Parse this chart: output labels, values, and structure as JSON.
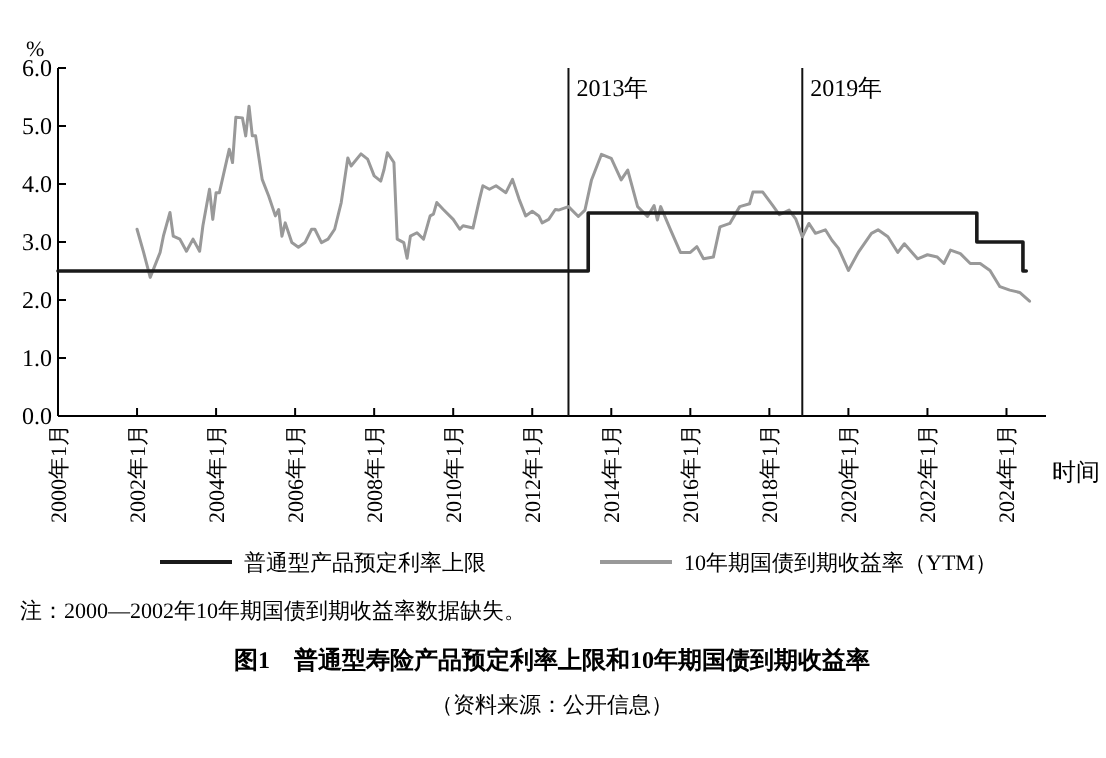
{
  "chart_data": {
    "type": "line",
    "title": "图1　普通型寿险产品预定利率上限和10年期国债到期收益率",
    "xlabel": "时间",
    "ylabel": "%",
    "annotations": [
      "注：2000—2002年10年期国债到期收益率数据缺失。",
      "（资料来源：公开信息）"
    ],
    "xlim": [
      "2000-01",
      "2025-01"
    ],
    "xticks": [
      {
        "value": "2000-01",
        "label": "2000年1月"
      },
      {
        "value": "2002-01",
        "label": "2002年1月"
      },
      {
        "value": "2004-01",
        "label": "2004年1月"
      },
      {
        "value": "2006-01",
        "label": "2006年1月"
      },
      {
        "value": "2008-01",
        "label": "2008年1月"
      },
      {
        "value": "2010-01",
        "label": "2010年1月"
      },
      {
        "value": "2012-01",
        "label": "2012年1月"
      },
      {
        "value": "2014-01",
        "label": "2014年1月"
      },
      {
        "value": "2016-01",
        "label": "2016年1月"
      },
      {
        "value": "2018-01",
        "label": "2018年1月"
      },
      {
        "value": "2020-01",
        "label": "2020年1月"
      },
      {
        "value": "2022-01",
        "label": "2022年1月"
      },
      {
        "value": "2024-01",
        "label": "2024年1月"
      }
    ],
    "ylim": [
      0,
      6
    ],
    "yticks": [
      {
        "value": 0,
        "label": "0.0"
      },
      {
        "value": 1,
        "label": "1.0"
      },
      {
        "value": 2,
        "label": "2.0"
      },
      {
        "value": 3,
        "label": "3.0"
      },
      {
        "value": 4,
        "label": "4.0"
      },
      {
        "value": 5,
        "label": "5.0"
      },
      {
        "value": 6,
        "label": "6.0"
      }
    ],
    "grid": false,
    "legend": "bottom",
    "ref_lines": [
      {
        "axis": "x",
        "value": "2012-12",
        "label": "2013年",
        "color": "#111111"
      },
      {
        "axis": "x",
        "value": "2018-11",
        "label": "2019年",
        "color": "#111111"
      }
    ],
    "series": [
      {
        "name": "普通型产品预定利率上限",
        "type": "step",
        "color": "#1a1a1a",
        "x": [
          "2000-01",
          "2013-06",
          "2023-04",
          "2024-06",
          "2024-07"
        ],
        "values": [
          2.5,
          3.5,
          3.0,
          2.5,
          2.5
        ]
      },
      {
        "name": "10年期国债到期收益率（YTM）",
        "type": "line",
        "color": "#999999",
        "x": [
          "2002-01",
          "2002-03",
          "2002-05",
          "2002-08",
          "2002-09",
          "2002-11",
          "2002-12",
          "2003-02",
          "2003-04",
          "2003-06",
          "2003-08",
          "2003-09",
          "2003-11",
          "2003-12",
          "2004-01",
          "2004-02",
          "2004-05",
          "2004-06",
          "2004-07",
          "2004-09",
          "2004-10",
          "2004-11",
          "2004-12",
          "2005-01",
          "2005-03",
          "2005-05",
          "2005-07",
          "2005-08",
          "2005-09",
          "2005-10",
          "2005-12",
          "2006-02",
          "2006-04",
          "2006-06",
          "2006-07",
          "2006-09",
          "2006-11",
          "2007-01",
          "2007-03",
          "2007-05",
          "2007-06",
          "2007-09",
          "2007-11",
          "2008-01",
          "2008-03",
          "2008-04",
          "2008-05",
          "2008-07",
          "2008-08",
          "2008-10",
          "2008-11",
          "2008-12",
          "2009-02",
          "2009-04",
          "2009-06",
          "2009-07",
          "2009-08",
          "2009-10",
          "2010-01",
          "2010-03",
          "2010-04",
          "2010-07",
          "2010-09",
          "2010-10",
          "2010-12",
          "2011-02",
          "2011-05",
          "2011-07",
          "2011-09",
          "2011-11",
          "2012-01",
          "2012-03",
          "2012-04",
          "2012-06",
          "2012-08",
          "2012-09",
          "2012-12",
          "2013-03",
          "2013-05",
          "2013-07",
          "2013-10",
          "2014-01",
          "2014-04",
          "2014-06",
          "2014-09",
          "2014-12",
          "2015-02",
          "2015-03",
          "2015-04",
          "2015-07",
          "2015-10",
          "2016-01",
          "2016-03",
          "2016-05",
          "2016-08",
          "2016-10",
          "2017-01",
          "2017-04",
          "2017-07",
          "2017-08",
          "2017-11",
          "2018-02",
          "2018-04",
          "2018-07",
          "2018-09",
          "2018-11",
          "2019-01",
          "2019-03",
          "2019-06",
          "2019-08",
          "2019-10",
          "2020-01",
          "2020-04",
          "2020-08",
          "2020-10",
          "2021-01",
          "2021-04",
          "2021-06",
          "2021-10",
          "2022-01",
          "2022-04",
          "2022-06",
          "2022-08",
          "2022-11",
          "2023-02",
          "2023-05",
          "2023-08",
          "2023-11",
          "2024-02",
          "2024-05",
          "2024-08"
        ],
        "values": [
          3.22,
          2.82,
          2.39,
          2.82,
          3.1,
          3.51,
          3.1,
          3.05,
          2.84,
          3.05,
          2.84,
          3.28,
          3.91,
          3.39,
          3.85,
          3.85,
          4.6,
          4.37,
          5.15,
          5.14,
          4.83,
          5.34,
          4.83,
          4.83,
          4.08,
          3.79,
          3.45,
          3.56,
          3.1,
          3.33,
          2.99,
          2.91,
          2.99,
          3.22,
          3.22,
          2.99,
          3.05,
          3.22,
          3.68,
          4.45,
          4.31,
          4.52,
          4.43,
          4.14,
          4.05,
          4.25,
          4.54,
          4.37,
          3.05,
          2.99,
          2.72,
          3.1,
          3.16,
          3.05,
          3.45,
          3.48,
          3.68,
          3.56,
          3.39,
          3.22,
          3.28,
          3.24,
          3.74,
          3.97,
          3.91,
          3.97,
          3.85,
          4.08,
          3.74,
          3.45,
          3.53,
          3.45,
          3.33,
          3.39,
          3.56,
          3.55,
          3.61,
          3.44,
          3.55,
          4.07,
          4.51,
          4.44,
          4.07,
          4.24,
          3.61,
          3.44,
          3.63,
          3.38,
          3.61,
          3.21,
          2.82,
          2.82,
          2.92,
          2.71,
          2.74,
          3.26,
          3.32,
          3.61,
          3.66,
          3.86,
          3.86,
          3.63,
          3.47,
          3.55,
          3.4,
          3.09,
          3.32,
          3.15,
          3.21,
          3.03,
          2.89,
          2.51,
          2.82,
          3.15,
          3.21,
          3.09,
          2.82,
          2.97,
          2.71,
          2.78,
          2.74,
          2.63,
          2.86,
          2.8,
          2.63,
          2.63,
          2.51,
          2.23,
          2.17,
          2.13,
          1.98
        ]
      }
    ]
  }
}
